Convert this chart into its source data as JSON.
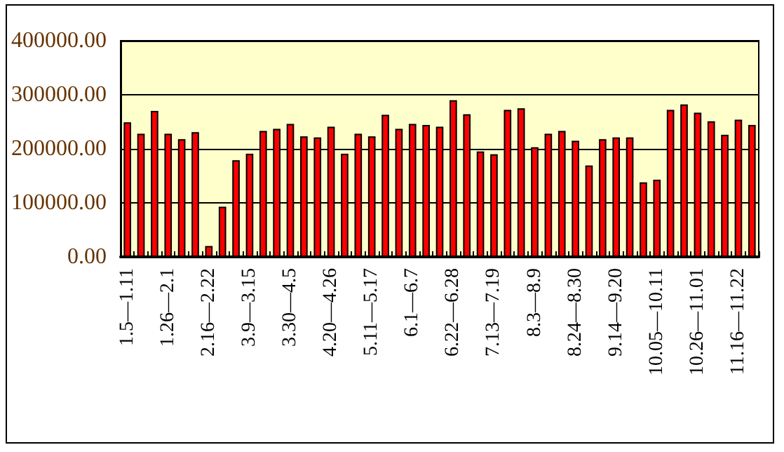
{
  "chart_data": {
    "type": "bar",
    "categories": [
      "1.5—1.11",
      null,
      null,
      "1.26—2.1",
      null,
      null,
      "2.16—2.22",
      null,
      null,
      "3.9—3.15",
      null,
      null,
      "3.30—4.5",
      null,
      null,
      "4.20—4.26",
      null,
      null,
      "5.11—5.17",
      null,
      null,
      "6.1—6.7",
      null,
      null,
      "6.22—6.28",
      null,
      null,
      "7.13—7.19",
      null,
      null,
      "8.3—8.9",
      null,
      null,
      "8.24—8.30",
      null,
      null,
      "9.14—9.20",
      null,
      null,
      "10.05—10.11",
      null,
      null,
      "10.26—11.01",
      null,
      null,
      "11.16—11.22",
      null
    ],
    "values": [
      249000,
      228000,
      270000,
      228000,
      218000,
      231000,
      20000,
      93000,
      179000,
      191000,
      233000,
      237000,
      246000,
      223000,
      221000,
      241000,
      191000,
      228000,
      223000,
      263000,
      237000,
      246000,
      244000,
      241000,
      290000,
      264000,
      195000,
      190000,
      272000,
      275000,
      203000,
      228000,
      233000,
      215000,
      169000,
      218000,
      221000,
      221000,
      138000,
      143000,
      272000,
      282000,
      267000,
      251000,
      226000,
      254000,
      244000
    ],
    "color": "#ff0000",
    "ylim": [
      0,
      400000
    ],
    "yticks": [
      {
        "value": 0,
        "label": "0.00"
      },
      {
        "value": 100000,
        "label": "100000.00"
      },
      {
        "value": 200000,
        "label": "200000.00"
      },
      {
        "value": 300000,
        "label": "300000.00"
      },
      {
        "value": 400000,
        "label": "400000.00"
      }
    ],
    "grid": "y"
  }
}
